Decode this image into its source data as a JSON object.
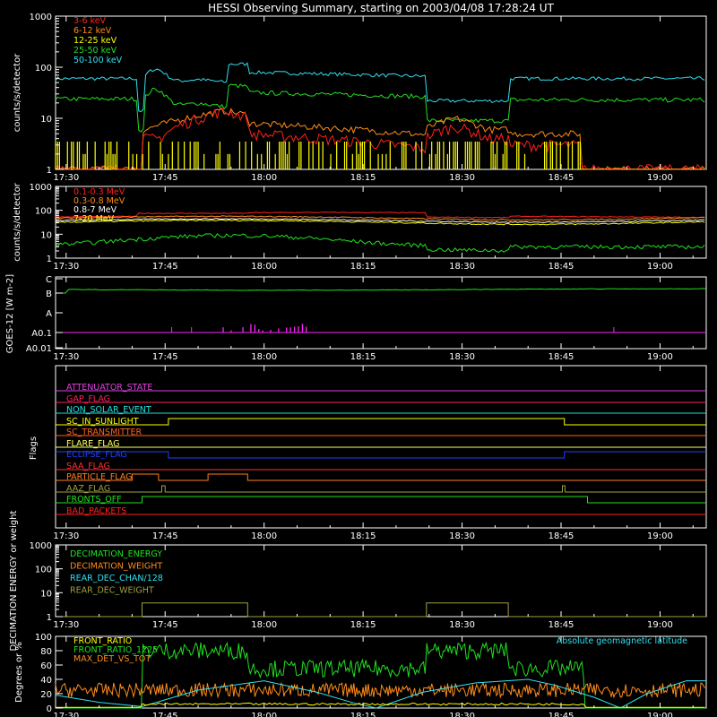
{
  "title": "HESSI Observing Summary, starting on 2003/04/08 17:28:24 UT",
  "colors": {
    "background": "#000000",
    "axis": "#ffffff"
  },
  "x_tick_labels": [
    "17:30",
    "17:45",
    "18:00",
    "18:15",
    "18:30",
    "18:45",
    "19:00"
  ],
  "chart_data": [
    {
      "type": "line",
      "id": "low-energy",
      "ylabel": "counts/s/detector",
      "y_scale": "log",
      "ylim": [
        1,
        1000
      ],
      "y_tick_labels": [
        "1",
        "10",
        "100",
        "1000"
      ],
      "legend_position": "top-left",
      "series": [
        {
          "name": "3-6 keV",
          "color": "#ff2020"
        },
        {
          "name": "6-12 keV",
          "color": "#ff8c1a"
        },
        {
          "name": "12-25 keV",
          "color": "#ffff00"
        },
        {
          "name": "25-50 keV",
          "color": "#20e020"
        },
        {
          "name": "50-100 keV",
          "color": "#30e0f0"
        }
      ]
    },
    {
      "type": "line",
      "id": "high-energy",
      "ylabel": "counts/s/detector",
      "y_scale": "log",
      "ylim": [
        1,
        1000
      ],
      "y_tick_labels": [
        "1",
        "10",
        "100",
        "1000"
      ],
      "legend_position": "top-left",
      "series": [
        {
          "name": "0.1-0.3 MeV",
          "color": "#ff2020"
        },
        {
          "name": "0.3-0.8 MeV",
          "color": "#ff8c1a"
        },
        {
          "name": "0.8-7 MeV",
          "color": "#ffffff"
        },
        {
          "name": "7-20 MeV",
          "color": "#ffff00"
        }
      ]
    },
    {
      "type": "line",
      "id": "goes",
      "ylabel": "GOES-12 [W m-2]",
      "y_tick_labels": [
        "C",
        "B",
        "A",
        "A0.1",
        "A0.01"
      ],
      "series": [
        {
          "color": "#20e020"
        },
        {
          "color": "#ff20ff"
        }
      ]
    },
    {
      "type": "line",
      "id": "flags",
      "ylabel": "Flags",
      "series": [
        {
          "name": "ATTENUATOR_STATE",
          "color": "#e040e0"
        },
        {
          "name": "GAP_FLAG",
          "color": "#ff2060"
        },
        {
          "name": "NON_SOLAR_EVENT",
          "color": "#20e0e0"
        },
        {
          "name": "SC_IN_SUNLIGHT",
          "color": "#ffff00"
        },
        {
          "name": "SC_TRANSMITTER",
          "color": "#ff6020"
        },
        {
          "name": "FLARE_FLAG",
          "color": "#ffff60"
        },
        {
          "name": "ECLIPSE_FLAG",
          "color": "#2040ff"
        },
        {
          "name": "SAA_FLAG",
          "color": "#ff3030"
        },
        {
          "name": "PARTICLE_FLAG",
          "color": "#ff8020"
        },
        {
          "name": "AAZ_FLAG",
          "color": "#a0a040"
        },
        {
          "name": "FRONTS_OFF",
          "color": "#20e020"
        },
        {
          "name": "BAD_PACKETS",
          "color": "#ff2020"
        }
      ]
    },
    {
      "type": "line",
      "id": "decimation",
      "ylabel": "DECIMATION ENERGY or weight",
      "y_scale": "log",
      "ylim": [
        1,
        1000
      ],
      "y_tick_labels": [
        "1",
        "10",
        "100",
        "1000"
      ],
      "series": [
        {
          "name": "DECIMATION_ENERGY",
          "color": "#20e020"
        },
        {
          "name": "DECIMATION_WEIGHT",
          "color": "#ff8c1a"
        },
        {
          "name": "REAR_DEC_CHAN/128",
          "color": "#30e0f0"
        },
        {
          "name": "REAR_DEC_WEIGHT",
          "color": "#a0a040"
        }
      ]
    },
    {
      "type": "line",
      "id": "ratio",
      "ylabel": "Degrees or %",
      "ylim": [
        0,
        100
      ],
      "y_tick_labels": [
        "0",
        "20",
        "40",
        "60",
        "80",
        "100"
      ],
      "annotation": "Absolute geomagnetic latitude",
      "series": [
        {
          "name": "FRONT_RATIO",
          "color": "#ffff00"
        },
        {
          "name": "FRONT_RATIO_1225",
          "color": "#20e020"
        },
        {
          "name": "MAX_DET_VS_TOT",
          "color": "#ff8c1a"
        }
      ]
    }
  ]
}
